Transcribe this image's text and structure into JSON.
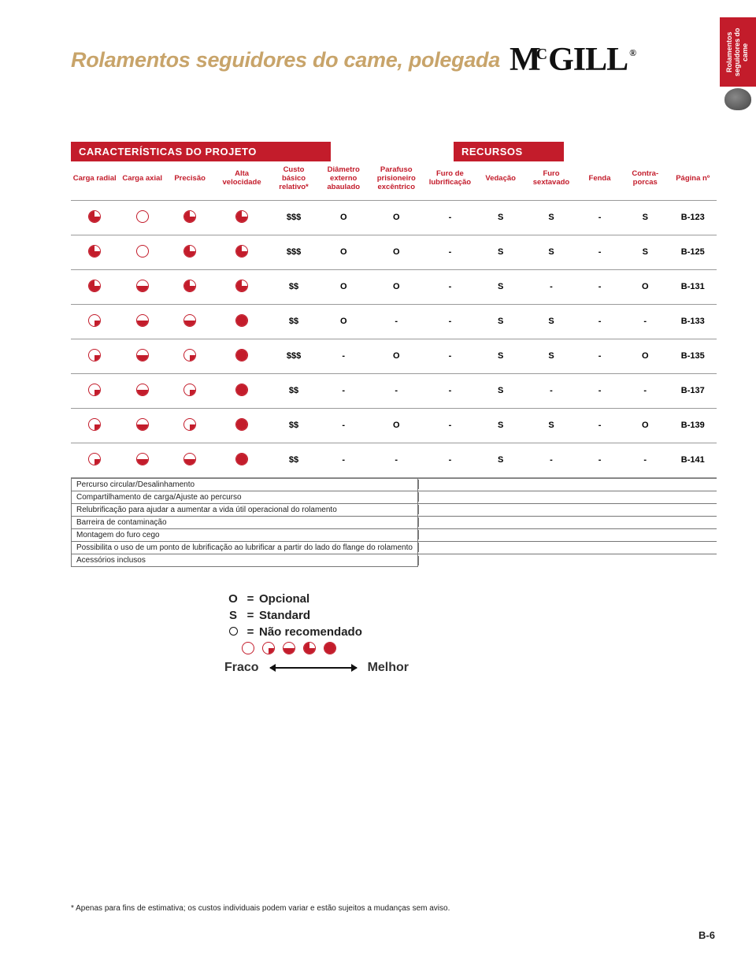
{
  "side_tab": "Rolamentos\nseguidores do\ncame",
  "title": "Rolamentos seguidores do came, polegada",
  "logo": {
    "m": "M",
    "c": "C",
    "gill": "GILL",
    "reg": "®"
  },
  "bands": {
    "design": "CARACTERÍSTICAS DO PROJETO",
    "resources": "RECURSOS"
  },
  "columns": [
    "Carga radial",
    "Carga axial",
    "Precisão",
    "Alta velocidade",
    "Custo básico relativo*",
    "Diâmetro externo abaulado",
    "Parafuso prisioneiro excêntrico",
    "Furo de lubrificação",
    "Vedação",
    "Furo sextavado",
    "Fenda",
    "Contra-porcas",
    "Página nº"
  ],
  "rows": [
    {
      "h": [
        "q3",
        "q0",
        "q3",
        "q3"
      ],
      "cost": "$$$",
      "v": [
        "O",
        "O",
        "-",
        "S",
        "S",
        "-",
        "S"
      ],
      "page": "B-123"
    },
    {
      "h": [
        "q3",
        "q0",
        "q3",
        "q3"
      ],
      "cost": "$$$",
      "v": [
        "O",
        "O",
        "-",
        "S",
        "S",
        "-",
        "S"
      ],
      "page": "B-125"
    },
    {
      "h": [
        "q3",
        "q2",
        "q3",
        "q3"
      ],
      "cost": "$$",
      "v": [
        "O",
        "O",
        "-",
        "S",
        "-",
        "-",
        "O"
      ],
      "page": "B-131"
    },
    {
      "h": [
        "q1",
        "q2",
        "q2",
        "q4"
      ],
      "cost": "$$",
      "v": [
        "O",
        "-",
        "-",
        "S",
        "S",
        "-",
        "-"
      ],
      "page": "B-133"
    },
    {
      "h": [
        "q1",
        "q2",
        "q1",
        "q4"
      ],
      "cost": "$$$",
      "v": [
        "-",
        "O",
        "-",
        "S",
        "S",
        "-",
        "O"
      ],
      "page": "B-135"
    },
    {
      "h": [
        "q1",
        "q2",
        "q1",
        "q4"
      ],
      "cost": "$$",
      "v": [
        "-",
        "-",
        "-",
        "S",
        "-",
        "-",
        "-"
      ],
      "page": "B-137"
    },
    {
      "h": [
        "q1",
        "q2",
        "q1",
        "q4"
      ],
      "cost": "$$",
      "v": [
        "-",
        "O",
        "-",
        "S",
        "S",
        "-",
        "O"
      ],
      "page": "B-139"
    },
    {
      "h": [
        "q1",
        "q2",
        "q2",
        "q4"
      ],
      "cost": "$$",
      "v": [
        "-",
        "-",
        "-",
        "S",
        "-",
        "-",
        "-"
      ],
      "page": "B-141"
    }
  ],
  "callouts": [
    "Percurso circular/Desalinhamento",
    "Compartilhamento de carga/Ajuste ao percurso",
    "Relubrificação para ajudar a aumentar a vida útil operacional do rolamento",
    "Barreira de contaminação",
    "Montagem do furo cego",
    "Possibilita o uso de um ponto de lubrificação ao lubrificar a partir do lado do flange do rolamento",
    "Acessórios inclusos"
  ],
  "legend": {
    "o": {
      "sym": "O",
      "eq": "=",
      "label": "Opcional"
    },
    "s": {
      "sym": "S",
      "eq": "=",
      "label": "Standard"
    },
    "nr": {
      "eq": "=",
      "label": "Não recomendado"
    },
    "weak": "Fraco",
    "best": "Melhor"
  },
  "footnote": "* Apenas para fins de estimativa; os custos individuais podem variar e estão sujeitos a mudanças sem aviso.",
  "page_num": "B-6"
}
